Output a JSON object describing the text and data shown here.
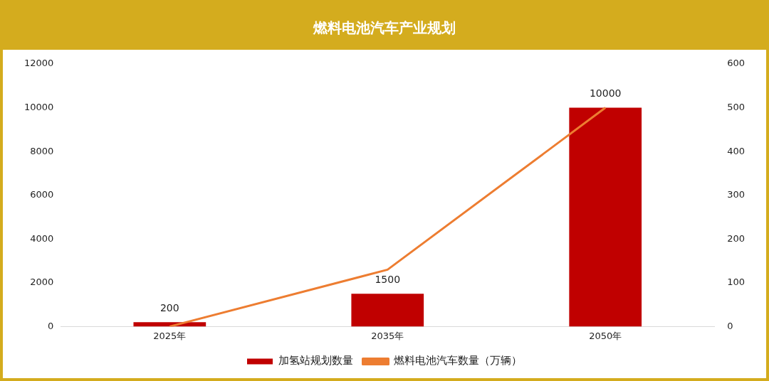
{
  "chart_data": {
    "type": "bar",
    "title": "燃料电池汽车产业规划",
    "categories": [
      "2025年",
      "2035年",
      "2050年"
    ],
    "series": [
      {
        "name": "加氢站规划数量",
        "color": "#c00000",
        "values": [
          200,
          1500,
          10000
        ],
        "value_labels": [
          "200",
          "1500",
          "10000"
        ]
      },
      {
        "name": "燃料电池汽车数量（万辆）",
        "type": "line",
        "axis": "y2",
        "color": "#ed7d31",
        "values": [
          0,
          130,
          500
        ]
      }
    ],
    "ylim": [
      0,
      12000
    ],
    "yticks": [
      0,
      2000,
      4000,
      6000,
      8000,
      10000,
      12000
    ],
    "y2lim": [
      0,
      600
    ],
    "y2ticks": [
      0,
      100,
      200,
      300,
      400,
      500,
      600
    ],
    "grid": false,
    "legend": "bottom",
    "marker": "none"
  }
}
